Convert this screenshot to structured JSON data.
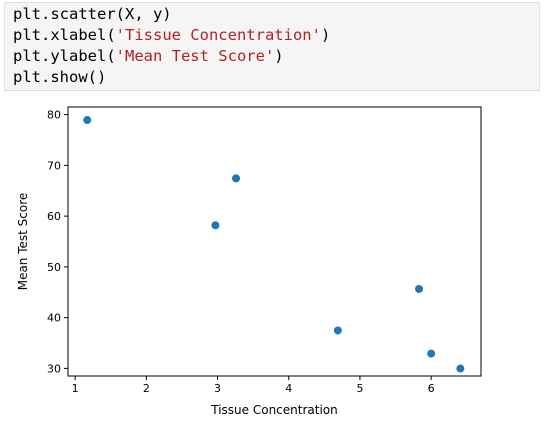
{
  "code_cell": {
    "lines": [
      [
        {
          "t": "plt.scatter(X, y)",
          "k": "code"
        }
      ],
      [
        {
          "t": "plt.xlabel(",
          "k": "code"
        },
        {
          "t": "'Tissue Concentration'",
          "k": "string"
        },
        {
          "t": ")",
          "k": "code"
        }
      ],
      [
        {
          "t": "plt.ylabel(",
          "k": "code"
        },
        {
          "t": "'Mean Test Score'",
          "k": "string"
        },
        {
          "t": ")",
          "k": "code"
        }
      ],
      [
        {
          "t": "plt.show()",
          "k": "code"
        }
      ]
    ]
  },
  "chart_data": {
    "type": "scatter",
    "xlabel": "Tissue Concentration",
    "ylabel": "Mean Test Score",
    "x": [
      1.17,
      2.97,
      3.26,
      4.69,
      5.83,
      6.0,
      6.41
    ],
    "y": [
      78.93,
      58.2,
      67.44,
      37.47,
      45.65,
      32.92,
      29.97
    ],
    "xlim": [
      0.9,
      6.7
    ],
    "ylim": [
      28.5,
      81.5
    ],
    "xticks": [
      1,
      2,
      3,
      4,
      5,
      6
    ],
    "yticks": [
      30,
      40,
      50,
      60,
      70,
      80
    ],
    "marker_color": "#1f77b4",
    "grid": false
  }
}
